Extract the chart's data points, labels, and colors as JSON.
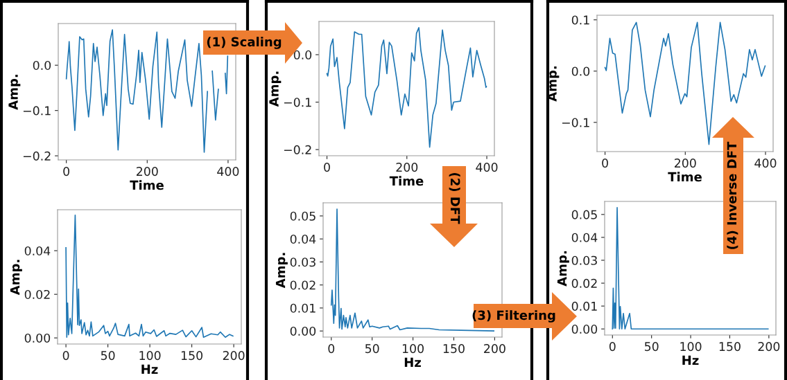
{
  "chart_data": [
    {
      "type": "line",
      "xlabel": "Time",
      "ylabel": "Amp.",
      "color": "#1f77b4",
      "annotations": [
        "(1) Scaling"
      ],
      "x": [
        0,
        2,
        6,
        7,
        10,
        14,
        21,
        26,
        33,
        39,
        43,
        48,
        55,
        60,
        67,
        71,
        76,
        83,
        91,
        97,
        100,
        108,
        114,
        119,
        128,
        134,
        144,
        153,
        158,
        165,
        174,
        179,
        182,
        187,
        196,
        205,
        214,
        224,
        228,
        236,
        244,
        250,
        261,
        269,
        277,
        293,
        299,
        310,
        318,
        328,
        334,
        341,
        349,
        356,
        361,
        369,
        376,
        388,
        393,
        396,
        399
      ],
      "values": [
        -0.03,
        -0.005,
        0.038,
        0.052,
        -0.003,
        -0.048,
        -0.144,
        -0.063,
        0.063,
        0.056,
        0.058,
        -0.053,
        -0.114,
        -0.068,
        0.048,
        0.008,
        0.04,
        -0.023,
        -0.111,
        -0.063,
        -0.089,
        0.053,
        0.078,
        -0.008,
        -0.187,
        -0.089,
        0.068,
        -0.053,
        -0.084,
        -0.086,
        -0.018,
        0.033,
        -0.038,
        0.028,
        -0.033,
        -0.119,
        -0.003,
        0.073,
        -0.038,
        -0.137,
        -0.028,
        0.058,
        -0.058,
        -0.073,
        -0.013,
        0.056,
        -0.033,
        -0.091,
        -0.028,
        0.048,
        -0.023,
        -0.192,
        -0.058,
        null,
        -0.013,
        -0.121,
        -0.053,
        null,
        -0.018,
        -0.063,
        0.02
      ],
      "xlim": [
        -20,
        419
      ],
      "ylim": [
        -0.209,
        0.092
      ],
      "xticks": [
        0,
        200,
        400
      ],
      "yticks": [
        {
          "value": -0.2,
          "label": "−0.2"
        },
        {
          "value": -0.1,
          "label": "−0.1"
        },
        {
          "value": 0,
          "label": "0.0"
        }
      ]
    },
    {
      "type": "line",
      "xlabel": "Time",
      "ylabel": "Amp.",
      "color": "#1f77b4",
      "annotations": [
        "(2) DFT"
      ],
      "x": [
        0,
        2,
        5,
        9,
        15,
        19,
        25,
        31,
        44,
        52,
        58,
        69,
        80,
        87,
        97,
        111,
        120,
        129,
        137,
        142,
        150,
        156,
        162,
        175,
        186,
        195,
        204,
        212,
        219,
        224,
        230,
        235,
        247,
        257,
        265,
        273,
        289,
        296,
        304,
        312,
        317,
        334,
        349,
        359,
        365,
        375,
        385,
        394,
        398,
        399
      ],
      "values": [
        -0.04,
        -0.045,
        -0.028,
        0.018,
        0.033,
        -0.025,
        -0.006,
        -0.059,
        -0.156,
        -0.069,
        -0.059,
        0.048,
        0.043,
        0.043,
        -0.088,
        -0.127,
        -0.079,
        -0.064,
        0.018,
        0.031,
        -0.04,
        0.026,
        0.018,
        -0.054,
        -0.127,
        -0.083,
        -0.108,
        0.004,
        -0.013,
        0.045,
        0.057,
        0.009,
        -0.054,
        -0.195,
        -0.127,
        -0.103,
        0.052,
        0.009,
        -0.023,
        -0.117,
        -0.1,
        -0.098,
        -0.03,
        0.014,
        -0.047,
        0.009,
        -0.023,
        -0.05,
        -0.069,
        -0.067
      ],
      "xlim": [
        -20,
        419
      ],
      "ylim": [
        -0.213,
        0.07
      ],
      "xticks": [
        0,
        200,
        400
      ],
      "yticks": [
        {
          "value": -0.2,
          "label": "−0.2"
        },
        {
          "value": -0.1,
          "label": "−0.1"
        },
        {
          "value": 0,
          "label": "0.0"
        }
      ]
    },
    {
      "type": "line",
      "xlabel": "Time",
      "ylabel": "Amp.",
      "color": "#1f77b4",
      "x": [
        0,
        3,
        12,
        19,
        25,
        43,
        53,
        57,
        68,
        78,
        88,
        100,
        113,
        122,
        146,
        151,
        158,
        169,
        189,
        199,
        204,
        215,
        230,
        241,
        259,
        276,
        287,
        299,
        314,
        321,
        328,
        345,
        351,
        360,
        367,
        374,
        390,
        399
      ],
      "values": [
        0.007,
        0.001,
        0.064,
        0.035,
        0.033,
        -0.082,
        -0.044,
        -0.037,
        0.08,
        0.095,
        0.049,
        -0.037,
        -0.089,
        -0.037,
        0.064,
        0.049,
        0.073,
        0.013,
        -0.064,
        -0.044,
        -0.05,
        0.046,
        0.095,
        -0.005,
        -0.143,
        0.008,
        0.095,
        0.042,
        -0.059,
        -0.046,
        -0.062,
        -0.005,
        -0.012,
        0.042,
        0.022,
        0.042,
        -0.01,
        0.01
      ],
      "xlim": [
        -20,
        419
      ],
      "ylim": [
        -0.157,
        0.109
      ],
      "xticks": [
        0,
        200,
        400
      ],
      "yticks": [
        {
          "value": -0.1,
          "label": "−0.1"
        },
        {
          "value": 0,
          "label": "0.0"
        },
        {
          "value": 0.1,
          "label": "0.1"
        }
      ]
    },
    {
      "type": "line",
      "xlabel": "Hz",
      "ylabel": "Amp.",
      "color": "#1f77b4",
      "x": [
        0,
        1,
        2,
        3,
        5,
        7,
        11,
        14,
        15,
        16,
        18,
        19,
        22,
        24,
        26,
        28,
        30,
        32,
        39,
        45,
        47,
        50,
        52,
        57,
        59,
        62,
        70,
        75,
        76,
        83,
        87,
        90,
        92,
        95,
        101,
        105,
        108,
        117,
        119,
        124,
        131,
        139,
        143,
        150,
        155,
        162,
        164,
        173,
        181,
        184,
        190,
        195,
        199
      ],
      "values": [
        0.0414,
        0.0003,
        0.016,
        0.0014,
        0.009,
        0.002,
        0.0563,
        0.006,
        0.0224,
        0.0057,
        0.0083,
        0.002,
        0.007,
        0.0014,
        0.0035,
        0.0009,
        0.0073,
        0.0009,
        0.0027,
        0.0057,
        0.002,
        0.003,
        0.0009,
        0.0046,
        0.0067,
        0.0016,
        0.0009,
        0.0062,
        0.0009,
        0.0022,
        0.0009,
        0.0062,
        0.0009,
        0.0027,
        0.002,
        0.0037,
        0.0007,
        0.0033,
        0.0009,
        0.0021,
        0.0016,
        0.0035,
        0.0005,
        0.0033,
        0.0005,
        0.0048,
        0.0003,
        0.0019,
        0.0014,
        0.0027,
        0.0003,
        0.0016,
        0.0009
      ],
      "xlim": [
        -10,
        209
      ],
      "ylim": [
        -0.0028,
        0.0588
      ],
      "xticks": [
        0,
        50,
        100,
        150,
        200
      ],
      "yticks": [
        {
          "value": 0,
          "label": "0.00"
        },
        {
          "value": 0.02,
          "label": "0.02"
        },
        {
          "value": 0.04,
          "label": "0.04"
        }
      ]
    },
    {
      "type": "line",
      "xlabel": "Hz",
      "ylabel": "Amp.",
      "color": "#1f77b4",
      "annotations": [
        "(3) Filtering"
      ],
      "x": [
        0,
        1,
        3,
        4,
        5,
        7,
        9,
        10,
        12,
        13,
        15,
        17,
        18,
        20,
        23,
        25,
        29,
        32,
        37,
        39,
        45,
        47,
        50,
        59,
        63,
        70,
        72,
        81,
        84,
        93,
        110,
        120,
        132,
        158,
        199
      ],
      "values": [
        0.0113,
        0.0178,
        0.0033,
        0.0113,
        0.0068,
        0.053,
        0.0143,
        0.0013,
        0.0098,
        0.0008,
        0.0068,
        0.0018,
        0.0058,
        0.0013,
        0.0068,
        0.0013,
        0.0078,
        0.0013,
        0.0043,
        0.0013,
        0.0048,
        0.0018,
        0.0021,
        0.0013,
        0.0018,
        0.0021,
        0.0008,
        0.0023,
        0.0005,
        0.0013,
        0.0011,
        0.0011,
        0.0005,
        0.0003,
        0
      ],
      "xlim": [
        -10,
        209
      ],
      "ylim": [
        -0.00265,
        0.0557
      ],
      "xticks": [
        0,
        50,
        100,
        150,
        200
      ],
      "yticks": [
        {
          "value": 0,
          "label": "0.00"
        },
        {
          "value": 0.01,
          "label": "0.01"
        },
        {
          "value": 0.02,
          "label": "0.02"
        },
        {
          "value": 0.03,
          "label": "0.03"
        },
        {
          "value": 0.04,
          "label": "0.04"
        },
        {
          "value": 0.05,
          "label": "0.05"
        }
      ]
    },
    {
      "type": "line",
      "xlabel": "Hz",
      "ylabel": "Amp.",
      "color": "#1f77b4",
      "annotations": [
        "(4) Inverse DFT"
      ],
      "x": [
        0,
        1,
        2,
        3,
        4,
        6,
        9,
        10,
        12,
        14,
        16,
        22,
        24,
        199
      ],
      "values": [
        0,
        0.0178,
        0.0003,
        0.0113,
        0.0003,
        0.053,
        0,
        0.0098,
        0,
        0.0068,
        0,
        0.0068,
        0,
        0
      ],
      "xlim": [
        -10,
        209
      ],
      "ylim": [
        -0.00265,
        0.0557
      ],
      "xticks": [
        0,
        50,
        100,
        150,
        200
      ],
      "yticks": [
        {
          "value": 0,
          "label": "0.00"
        },
        {
          "value": 0.01,
          "label": "0.01"
        },
        {
          "value": 0.02,
          "label": "0.02"
        },
        {
          "value": 0.03,
          "label": "0.03"
        },
        {
          "value": 0.04,
          "label": "0.04"
        },
        {
          "value": 0.05,
          "label": "0.05"
        }
      ]
    }
  ]
}
